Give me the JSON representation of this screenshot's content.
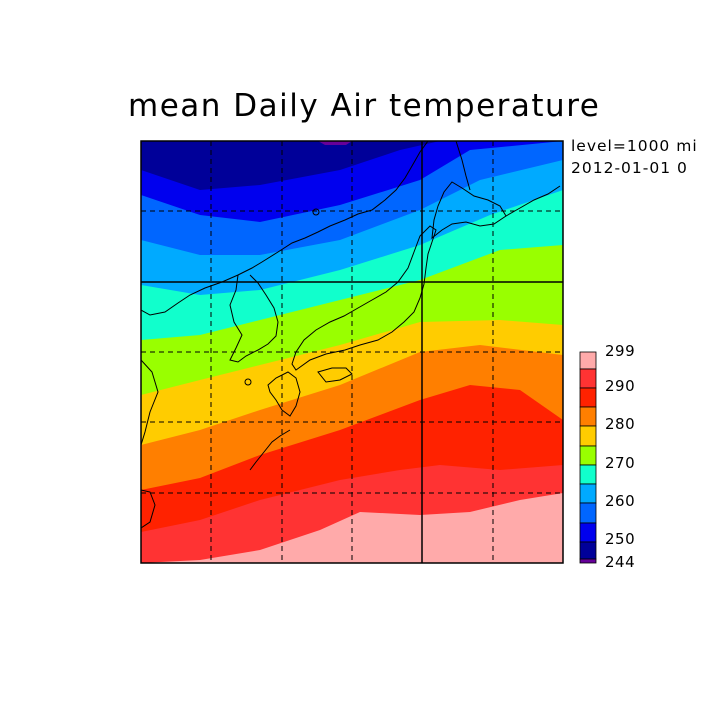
{
  "title": "mean Daily Air temperature",
  "meta": {
    "level": "level=1000 mi",
    "date": "2012-01-01 0"
  },
  "colorbar": {
    "label_top_to_bottom": [
      "299",
      "290",
      "280",
      "270",
      "260",
      "250",
      "244"
    ],
    "colors_top_to_bottom": [
      "#ffaaaa",
      "#ff3333",
      "#ff2200",
      "#ff7f00",
      "#ffcc00",
      "#99ff00",
      "#11ffcc",
      "#00aaff",
      "#0066ff",
      "#0000ee",
      "#000099",
      "#660099"
    ]
  },
  "map": {
    "band_colors_north_to_south": [
      "#000099",
      "#0000ee",
      "#0066ff",
      "#00aaff",
      "#11ffcc",
      "#99ff00",
      "#ffcc00",
      "#ff7f00",
      "#ff2200",
      "#ff3333",
      "#ffaaaa"
    ],
    "grid": "dashed",
    "coastlines": "black"
  }
}
